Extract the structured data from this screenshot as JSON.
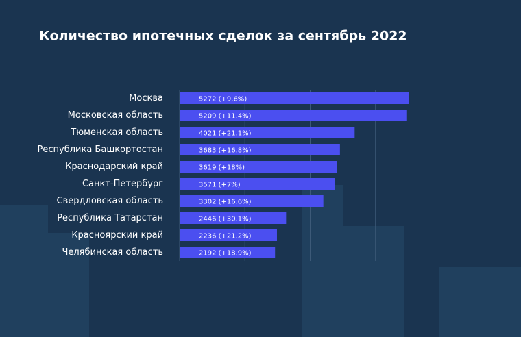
{
  "chart_data": {
    "type": "bar",
    "orientation": "horizontal",
    "title": "Количество ипотечных сделок за сентябрь 2022",
    "categories": [
      "Москва",
      "Московская область",
      "Тюменская область",
      "Республика Башкортостан",
      "Краснодарский край",
      "Санкт-Петербург",
      "Свердловская область",
      "Республика Татарстан",
      "Красноярский край",
      "Челябинская область"
    ],
    "values": [
      5272,
      5209,
      4021,
      3683,
      3619,
      3571,
      3302,
      2446,
      2236,
      2192
    ],
    "value_labels": [
      "5272 (+9.6%)",
      "5209 (+11.4%)",
      "4021 (+21.1%)",
      "3683 (+16.8%)",
      "3619 (+18%)",
      "3571 (+7%)",
      "3302 (+16.6%)",
      "2446 (+30.1%)",
      "2236 (+21.2%)",
      "2192 (+18.9%)"
    ],
    "color": "#4b4ff0",
    "xlim": [
      0,
      6000
    ],
    "xticks": [
      0,
      1500,
      3000,
      4500
    ],
    "grid": true
  }
}
